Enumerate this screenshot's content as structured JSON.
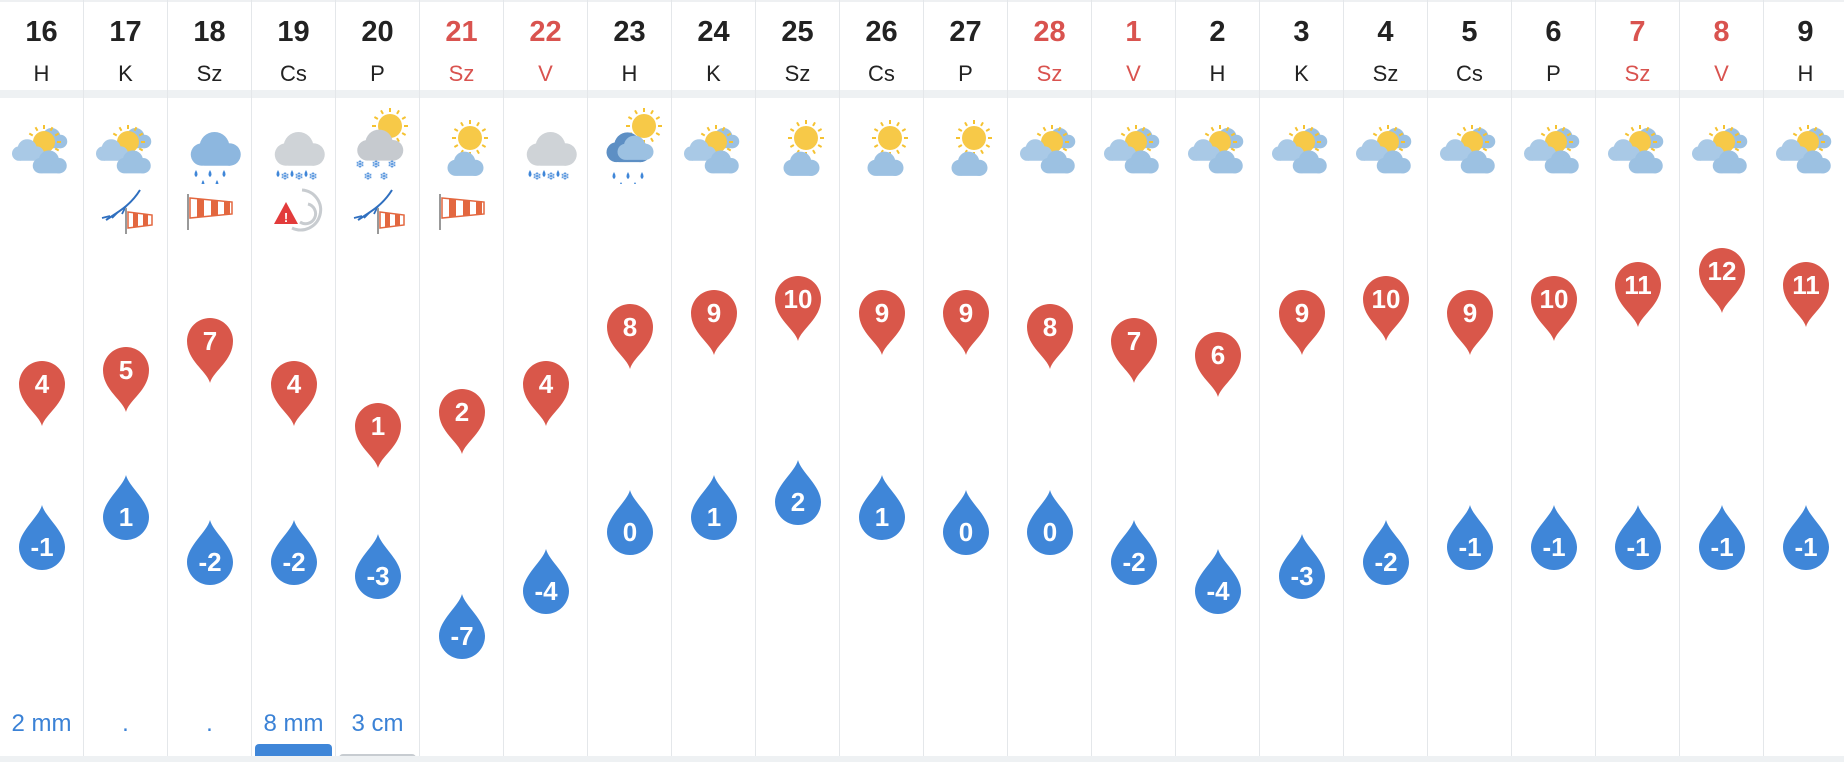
{
  "days": [
    {
      "num": "16",
      "name": "H",
      "weekend": false,
      "icon": "partly-cloudy-sun-icon",
      "extra": "",
      "max": "4",
      "min": "-1",
      "precip": "2 mm",
      "bar": {
        "h": 6,
        "color": "#3f86d8"
      }
    },
    {
      "num": "17",
      "name": "K",
      "weekend": false,
      "icon": "partly-cloudy-sun-icon",
      "extra": "wind-icon",
      "max": "5",
      "min": "1",
      "precip": ".",
      "bar": {
        "h": 4,
        "color": "#3f86d8"
      }
    },
    {
      "num": "18",
      "name": "Sz",
      "weekend": false,
      "icon": "rain-icon",
      "extra": "windsock-icon",
      "max": "7",
      "min": "-2",
      "precip": ".",
      "bar": {
        "h": 4,
        "color": "#3f86d8"
      }
    },
    {
      "num": "19",
      "name": "Cs",
      "weekend": false,
      "icon": "sleet-icon",
      "extra": "storm-warning-icon",
      "max": "4",
      "min": "-2",
      "precip": "8 mm",
      "bar": {
        "h": 18,
        "color": "#3f86d8"
      }
    },
    {
      "num": "20",
      "name": "P",
      "weekend": false,
      "icon": "sun-snow-icon",
      "extra": "wind-icon",
      "max": "1",
      "min": "-3",
      "precip": "3 cm",
      "bar": {
        "h": 8,
        "color": "#c7ccd1"
      }
    },
    {
      "num": "21",
      "name": "Sz",
      "weekend": true,
      "icon": "small-sun-cloud-icon",
      "extra": "windsock-icon",
      "max": "2",
      "min": "-7",
      "precip": "",
      "bar": null
    },
    {
      "num": "22",
      "name": "V",
      "weekend": true,
      "icon": "sleet-icon",
      "extra": "",
      "max": "4",
      "min": "-4",
      "precip": "",
      "bar": null
    },
    {
      "num": "23",
      "name": "H",
      "weekend": false,
      "icon": "sun-rain-icon",
      "extra": "",
      "max": "8",
      "min": "0",
      "precip": "",
      "bar": null
    },
    {
      "num": "24",
      "name": "K",
      "weekend": false,
      "icon": "partly-cloudy-sun-icon",
      "extra": "",
      "max": "9",
      "min": "1",
      "precip": "",
      "bar": null
    },
    {
      "num": "25",
      "name": "Sz",
      "weekend": false,
      "icon": "small-sun-cloud-icon",
      "extra": "",
      "max": "10",
      "min": "2",
      "precip": "",
      "bar": null
    },
    {
      "num": "26",
      "name": "Cs",
      "weekend": false,
      "icon": "small-sun-cloud-icon",
      "extra": "",
      "max": "9",
      "min": "1",
      "precip": "",
      "bar": null
    },
    {
      "num": "27",
      "name": "P",
      "weekend": false,
      "icon": "small-sun-cloud-icon",
      "extra": "",
      "max": "9",
      "min": "0",
      "precip": "",
      "bar": null
    },
    {
      "num": "28",
      "name": "Sz",
      "weekend": true,
      "icon": "partly-cloudy-sun-icon",
      "extra": "",
      "max": "8",
      "min": "0",
      "precip": "",
      "bar": null
    },
    {
      "num": "1",
      "name": "V",
      "weekend": true,
      "icon": "partly-cloudy-sun-icon",
      "extra": "",
      "max": "7",
      "min": "-2",
      "precip": "",
      "bar": null
    },
    {
      "num": "2",
      "name": "H",
      "weekend": false,
      "icon": "partly-cloudy-sun-icon",
      "extra": "",
      "max": "6",
      "min": "-4",
      "precip": "",
      "bar": null
    },
    {
      "num": "3",
      "name": "K",
      "weekend": false,
      "icon": "partly-cloudy-sun-icon",
      "extra": "",
      "max": "9",
      "min": "-3",
      "precip": "",
      "bar": null
    },
    {
      "num": "4",
      "name": "Sz",
      "weekend": false,
      "icon": "partly-cloudy-sun-icon",
      "extra": "",
      "max": "10",
      "min": "-2",
      "precip": "",
      "bar": null
    },
    {
      "num": "5",
      "name": "Cs",
      "weekend": false,
      "icon": "partly-cloudy-sun-icon",
      "extra": "",
      "max": "9",
      "min": "-1",
      "precip": "",
      "bar": null
    },
    {
      "num": "6",
      "name": "P",
      "weekend": false,
      "icon": "partly-cloudy-sun-icon",
      "extra": "",
      "max": "10",
      "min": "-1",
      "precip": "",
      "bar": null
    },
    {
      "num": "7",
      "name": "Sz",
      "weekend": true,
      "icon": "partly-cloudy-sun-icon",
      "extra": "",
      "max": "11",
      "min": "-1",
      "precip": "",
      "bar": null
    },
    {
      "num": "8",
      "name": "V",
      "weekend": true,
      "icon": "partly-cloudy-sun-icon",
      "extra": "",
      "max": "12",
      "min": "-1",
      "precip": "",
      "bar": null
    },
    {
      "num": "9",
      "name": "H",
      "weekend": false,
      "icon": "partly-cloudy-sun-icon",
      "extra": "",
      "max": "11",
      "min": "-1",
      "precip": "",
      "bar": null
    }
  ],
  "colors": {
    "max_pin": "#d9574a",
    "min_pin": "#3f86d8",
    "weekend_text": "#d9534f",
    "precip_text": "#3b82d6"
  }
}
